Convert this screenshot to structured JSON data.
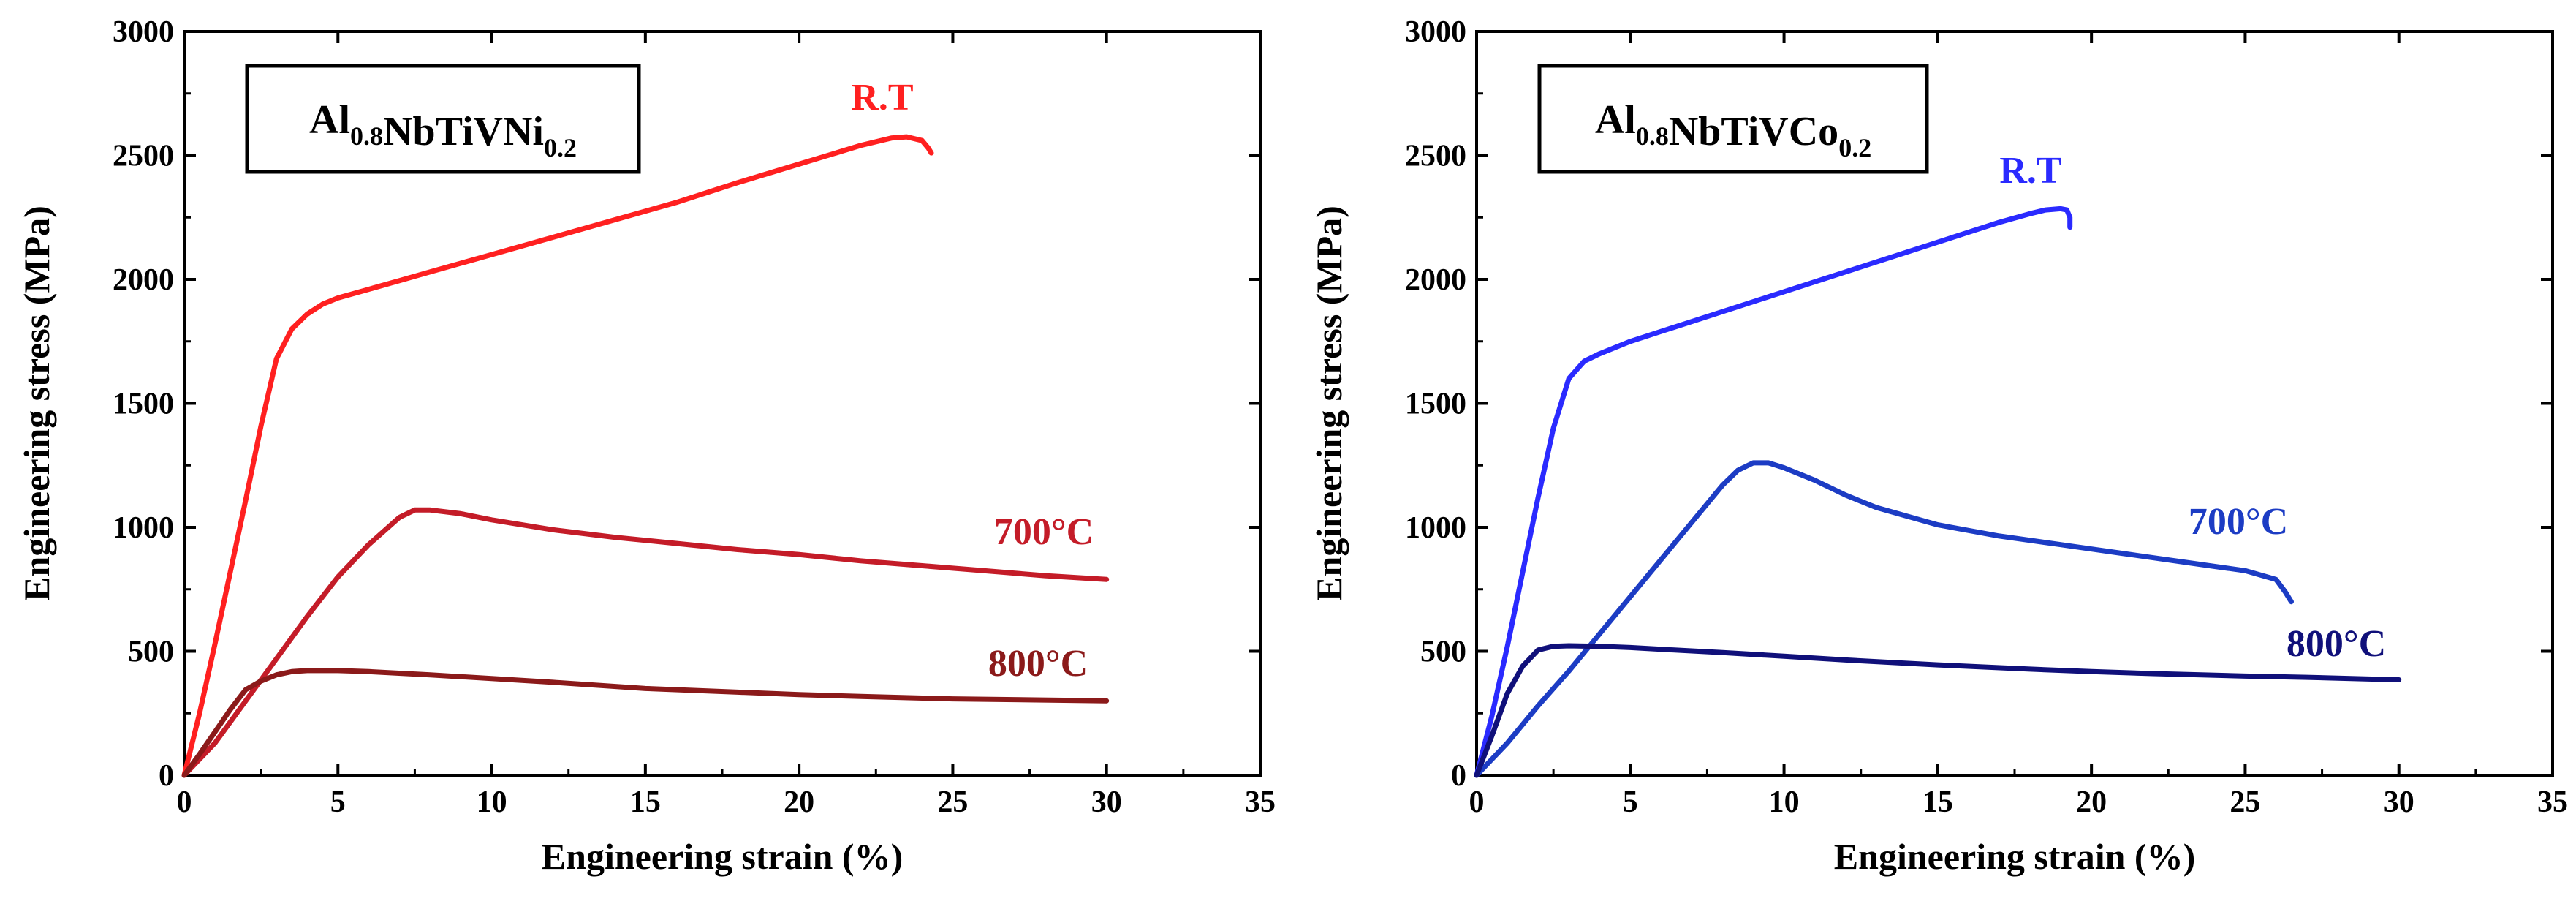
{
  "chart_data": [
    {
      "type": "line",
      "title": "",
      "alloy": {
        "base": "Al",
        "s1": "0.8",
        "mid": "NbTiVNi",
        "s2": "0.2"
      },
      "xlabel": "Engineering strain (%)",
      "ylabel": "Engineering stress (MPa)",
      "xlim": [
        0,
        35
      ],
      "ylim": [
        0,
        3000
      ],
      "xticks": [
        "0",
        "5",
        "10",
        "15",
        "20",
        "25",
        "30",
        "35"
      ],
      "yticks": [
        "0",
        "500",
        "1000",
        "1500",
        "2000",
        "2500",
        "3000"
      ],
      "series": [
        {
          "name": "R.T",
          "color": "#ff2020",
          "x": [
            0,
            0.5,
            1,
            1.5,
            2,
            2.5,
            3,
            3.5,
            4,
            4.5,
            5,
            6,
            7,
            8,
            10,
            12,
            14,
            16,
            18,
            20,
            22,
            23,
            23.5,
            24,
            24.2,
            24.3
          ],
          "y": [
            0,
            250,
            530,
            820,
            1110,
            1410,
            1680,
            1800,
            1860,
            1900,
            1925,
            1960,
            1995,
            2030,
            2100,
            2170,
            2240,
            2310,
            2390,
            2465,
            2540,
            2570,
            2575,
            2560,
            2530,
            2510
          ]
        },
        {
          "name": "700°C",
          "color": "#c41c28",
          "x": [
            0,
            1,
            2,
            3,
            4,
            5,
            6,
            7,
            7.5,
            8,
            9,
            10,
            12,
            14,
            16,
            18,
            20,
            22,
            24,
            26,
            28,
            30
          ],
          "y": [
            0,
            130,
            300,
            470,
            640,
            800,
            930,
            1040,
            1070,
            1070,
            1055,
            1030,
            990,
            960,
            935,
            910,
            890,
            865,
            845,
            825,
            805,
            790
          ]
        },
        {
          "name": "800°C",
          "color": "#8b1a1a",
          "x": [
            0,
            0.5,
            1,
            1.5,
            2,
            2.5,
            3,
            3.5,
            4,
            5,
            6,
            8,
            10,
            12,
            15,
            18,
            20,
            22,
            25,
            27,
            30
          ],
          "y": [
            0,
            85,
            175,
            265,
            345,
            380,
            405,
            418,
            422,
            422,
            418,
            405,
            390,
            375,
            350,
            335,
            325,
            318,
            308,
            305,
            300
          ]
        }
      ],
      "annotations": [
        {
          "text": "R.T",
          "color": "#ff2020"
        },
        {
          "text": "700°C",
          "color": "#c41c28"
        },
        {
          "text": "800°C",
          "color": "#8b1a1a"
        }
      ]
    },
    {
      "type": "line",
      "title": "",
      "alloy": {
        "base": "Al",
        "s1": "0.8",
        "mid": "NbTiVCo",
        "s2": "0.2"
      },
      "xlabel": "Engineering strain (%)",
      "ylabel": "Engineering stress (MPa)",
      "xlim": [
        0,
        35
      ],
      "ylim": [
        0,
        3000
      ],
      "xticks": [
        "0",
        "5",
        "10",
        "15",
        "20",
        "25",
        "30",
        "35"
      ],
      "yticks": [
        "0",
        "500",
        "1000",
        "1500",
        "2000",
        "2500",
        "3000"
      ],
      "series": [
        {
          "name": "R.T",
          "color": "#2a2aff",
          "x": [
            0,
            0.5,
            1,
            1.5,
            2,
            2.5,
            3,
            3.5,
            4,
            5,
            6,
            8,
            10,
            12,
            14,
            16,
            17,
            18,
            18.5,
            19,
            19.2,
            19.3,
            19.3
          ],
          "y": [
            0,
            240,
            520,
            820,
            1120,
            1400,
            1600,
            1670,
            1700,
            1750,
            1790,
            1870,
            1950,
            2030,
            2110,
            2190,
            2230,
            2265,
            2280,
            2285,
            2280,
            2250,
            2210
          ]
        },
        {
          "name": "700°C",
          "color": "#1c3cc4",
          "x": [
            0,
            1,
            2,
            3,
            4,
            5,
            6,
            7,
            8,
            8.5,
            9,
            9.5,
            10,
            11,
            12,
            13,
            15,
            17,
            19,
            21,
            23,
            25,
            26,
            26.3,
            26.5
          ],
          "y": [
            0,
            130,
            280,
            420,
            570,
            720,
            870,
            1020,
            1170,
            1230,
            1260,
            1260,
            1240,
            1190,
            1130,
            1080,
            1010,
            965,
            930,
            895,
            860,
            825,
            790,
            740,
            700
          ]
        },
        {
          "name": "800°C",
          "color": "#10107a",
          "x": [
            0,
            0.5,
            1,
            1.5,
            2,
            2.5,
            3,
            4,
            5,
            6,
            8,
            10,
            12,
            15,
            18,
            20,
            22,
            25,
            27,
            30
          ],
          "y": [
            0,
            160,
            330,
            440,
            505,
            520,
            522,
            520,
            515,
            508,
            495,
            480,
            465,
            445,
            428,
            418,
            410,
            400,
            395,
            385
          ]
        }
      ],
      "annotations": [
        {
          "text": "R.T",
          "color": "#2a2aff"
        },
        {
          "text": "700°C",
          "color": "#1c3cc4"
        },
        {
          "text": "800°C",
          "color": "#10107a"
        }
      ]
    }
  ]
}
